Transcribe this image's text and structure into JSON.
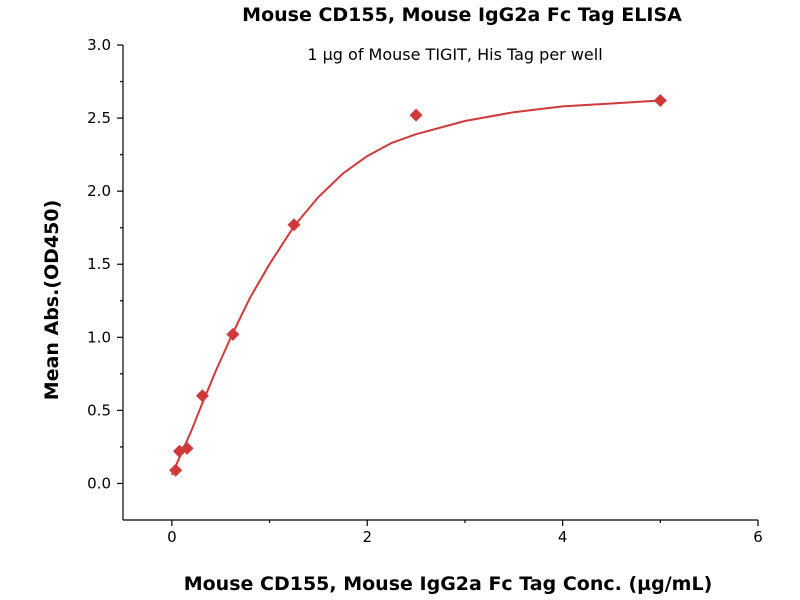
{
  "chart_data": {
    "type": "scatter",
    "title": "Mouse CD155, Mouse IgG2a Fc Tag ELISA",
    "subtitle": "1 µg of Mouse TIGIT, His Tag per well",
    "xlabel": "Mouse CD155, Mouse IgG2a Fc Tag Conc. (µg/mL)",
    "ylabel": "Mean Abs.(OD450)",
    "xlim": [
      -0.5,
      6
    ],
    "ylim": [
      -0.25,
      3.0
    ],
    "x_ticks": [
      0,
      2,
      4,
      6
    ],
    "x_tick_labels": [
      "0",
      "2",
      "4",
      "6"
    ],
    "y_ticks": [
      0.0,
      0.5,
      1.0,
      1.5,
      2.0,
      2.5,
      3.0
    ],
    "y_tick_labels": [
      "0.0",
      "0.5",
      "1.0",
      "1.5",
      "2.0",
      "2.5",
      "3.0"
    ],
    "grid": false,
    "marker_color": "#d0393a",
    "line_color": "#d0393a",
    "series": [
      {
        "name": "measured",
        "marker": "diamond",
        "points": [
          {
            "x": 0.039,
            "y": 0.09
          },
          {
            "x": 0.078,
            "y": 0.22
          },
          {
            "x": 0.156,
            "y": 0.24
          },
          {
            "x": 0.313,
            "y": 0.6
          },
          {
            "x": 0.625,
            "y": 1.02
          },
          {
            "x": 1.25,
            "y": 1.77
          },
          {
            "x": 2.5,
            "y": 2.52
          },
          {
            "x": 5.0,
            "y": 2.62
          }
        ]
      },
      {
        "name": "fit",
        "type": "line",
        "points": [
          {
            "x": 0.0,
            "y": 0.06
          },
          {
            "x": 0.1,
            "y": 0.21
          },
          {
            "x": 0.2,
            "y": 0.36
          },
          {
            "x": 0.3,
            "y": 0.53
          },
          {
            "x": 0.45,
            "y": 0.77
          },
          {
            "x": 0.625,
            "y": 1.03
          },
          {
            "x": 0.8,
            "y": 1.27
          },
          {
            "x": 1.0,
            "y": 1.5
          },
          {
            "x": 1.25,
            "y": 1.76
          },
          {
            "x": 1.5,
            "y": 1.96
          },
          {
            "x": 1.75,
            "y": 2.12
          },
          {
            "x": 2.0,
            "y": 2.24
          },
          {
            "x": 2.25,
            "y": 2.33
          },
          {
            "x": 2.5,
            "y": 2.39
          },
          {
            "x": 3.0,
            "y": 2.48
          },
          {
            "x": 3.5,
            "y": 2.54
          },
          {
            "x": 4.0,
            "y": 2.58
          },
          {
            "x": 4.5,
            "y": 2.6
          },
          {
            "x": 5.0,
            "y": 2.62
          }
        ]
      }
    ]
  }
}
